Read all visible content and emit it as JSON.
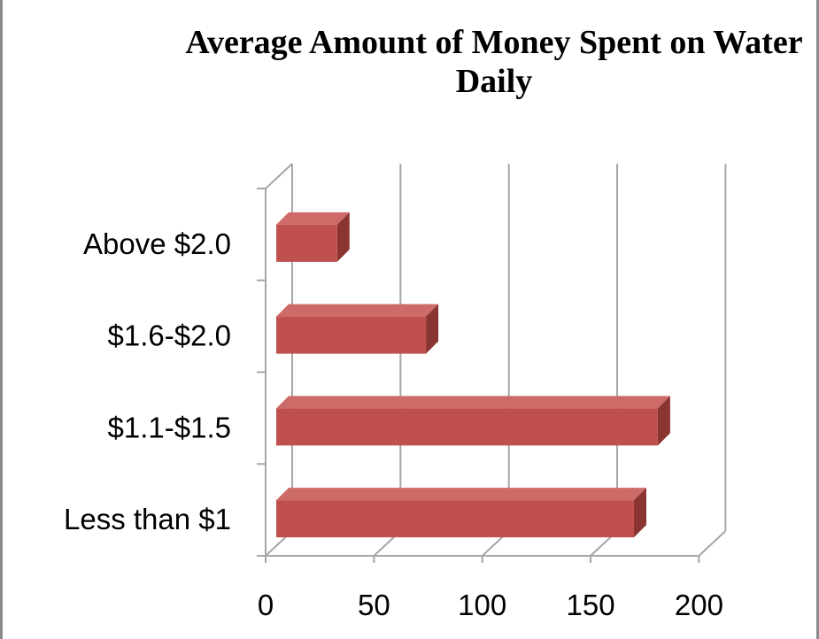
{
  "chart_data": {
    "type": "bar",
    "orientation": "horizontal",
    "style": "3d",
    "title": "Average Amount of Money Spent on Water Daily",
    "categories": [
      "Less than $1",
      "$1.1-$1.5",
      "$1.6-$2.0",
      "Above $2.0"
    ],
    "values": [
      170,
      181,
      74,
      33
    ],
    "xlim": [
      0,
      200
    ],
    "x_ticks": [
      "0",
      "50",
      "100",
      "150",
      "200"
    ],
    "grid": "vertical",
    "legend": "none",
    "colors": {
      "bar_front": "#c0504d",
      "bar_top": "#cd6b68",
      "bar_side": "#8b3532",
      "grid": "#a6a6a6",
      "frame": "#8a8a8a"
    }
  }
}
